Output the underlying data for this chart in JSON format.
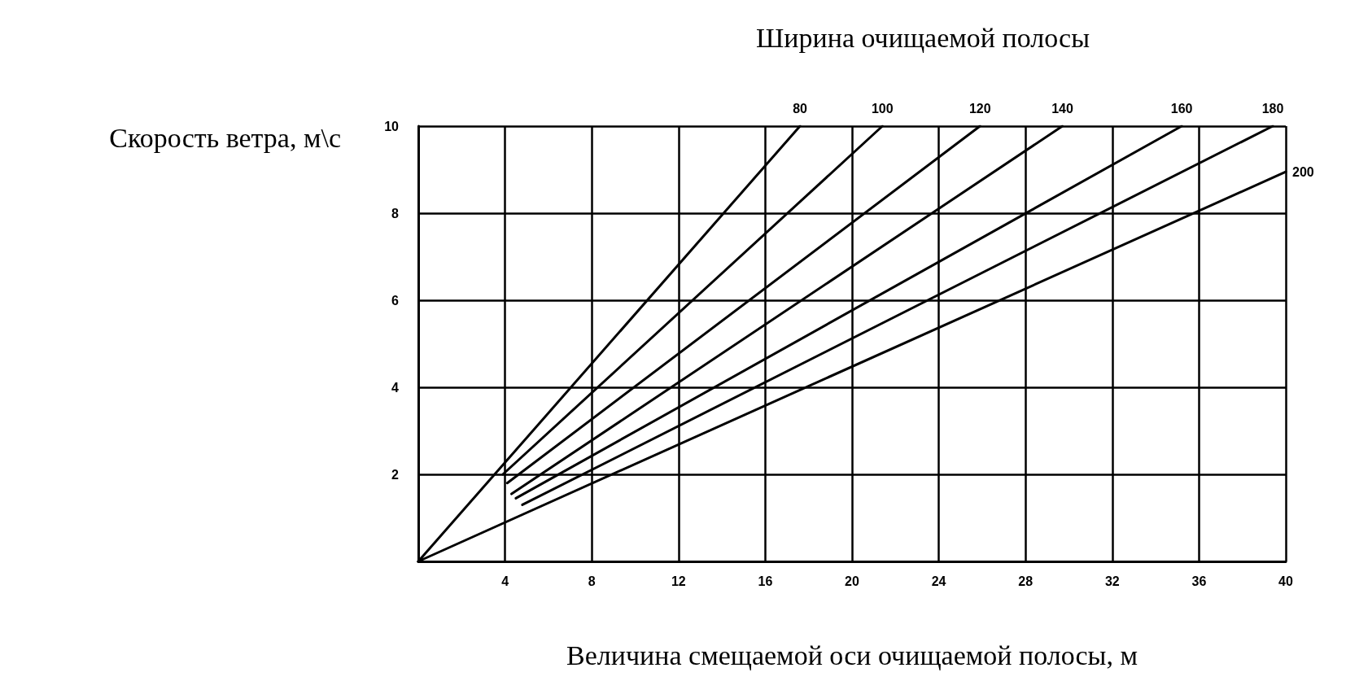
{
  "chart_data": {
    "type": "line",
    "title": "Ширина очищаемой полосы",
    "xlabel": "Величина смещаемой оси очищаемой полосы, м",
    "ylabel": "Скорость ветра, м\\с",
    "xlim": [
      0,
      40
    ],
    "xticks": [
      4,
      8,
      12,
      16,
      20,
      24,
      28,
      32,
      36,
      40
    ],
    "ylim": [
      0,
      10
    ],
    "yticks": [
      2,
      4,
      6,
      8,
      10
    ],
    "grid": true,
    "marker": "none",
    "line_style": "solid",
    "series": [
      {
        "name": "80",
        "color": "#000000",
        "x": [
          0,
          17.6
        ],
        "values": [
          0,
          10
        ]
      },
      {
        "name": "100",
        "color": "#000000",
        "x": [
          3.9,
          21.4
        ],
        "values": [
          2.0,
          10
        ]
      },
      {
        "name": "120",
        "color": "#000000",
        "x": [
          4.1,
          25.9
        ],
        "values": [
          1.8,
          10
        ]
      },
      {
        "name": "140",
        "color": "#000000",
        "x": [
          4.3,
          29.7
        ],
        "values": [
          1.55,
          10
        ]
      },
      {
        "name": "160",
        "color": "#000000",
        "x": [
          4.5,
          35.2
        ],
        "values": [
          1.45,
          10
        ]
      },
      {
        "name": "180",
        "color": "#000000",
        "x": [
          4.8,
          39.4
        ],
        "values": [
          1.3,
          10
        ]
      },
      {
        "name": "200",
        "color": "#000000",
        "x": [
          0,
          40
        ],
        "values": [
          0,
          8.95
        ]
      }
    ]
  }
}
